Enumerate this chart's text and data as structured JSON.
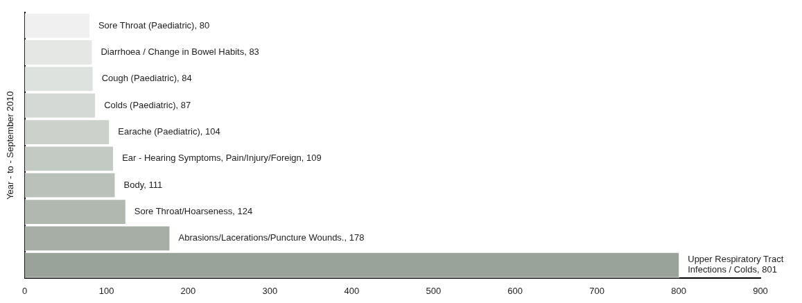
{
  "chart_data": {
    "type": "bar",
    "orientation": "horizontal",
    "ylabel": "Year - to - September 2010",
    "categories": [
      null,
      null,
      null,
      null,
      null,
      null,
      null,
      null,
      null,
      null
    ],
    "values": [
      80,
      83,
      84,
      87,
      104,
      109,
      111,
      124,
      178,
      801
    ],
    "colors": [
      "#f0f0f0",
      "#e5e7e5",
      "#dee2de",
      "#d5d9d5",
      "#ccd1cc",
      "#c3c9c3",
      "#bac1ba",
      "#b0b8b0",
      "#a6aea6",
      "#99a399"
    ],
    "value_labels": [
      "Sore Throat (Paediatric), 80",
      "Diarrhoea / Change in Bowel Habits, 83",
      "Cough (Paediatric), 84",
      "Colds (Paediatric), 87",
      "Earache (Paediatric), 104",
      "Ear - Hearing Symptoms, Pain/Injury/Foreign, 109",
      "Body, 111",
      "Sore Throat/Hoarseness, 124",
      "Abrasions/Lacerations/Puncture Wounds., 178",
      "Upper Respiratory Tract Infections / Colds, 801"
    ],
    "xlim": [
      0,
      900
    ],
    "xticks": [
      0,
      100,
      200,
      300,
      400,
      500,
      600,
      700,
      800,
      900
    ],
    "tick_labels": "x",
    "grid": false,
    "legend": false
  }
}
